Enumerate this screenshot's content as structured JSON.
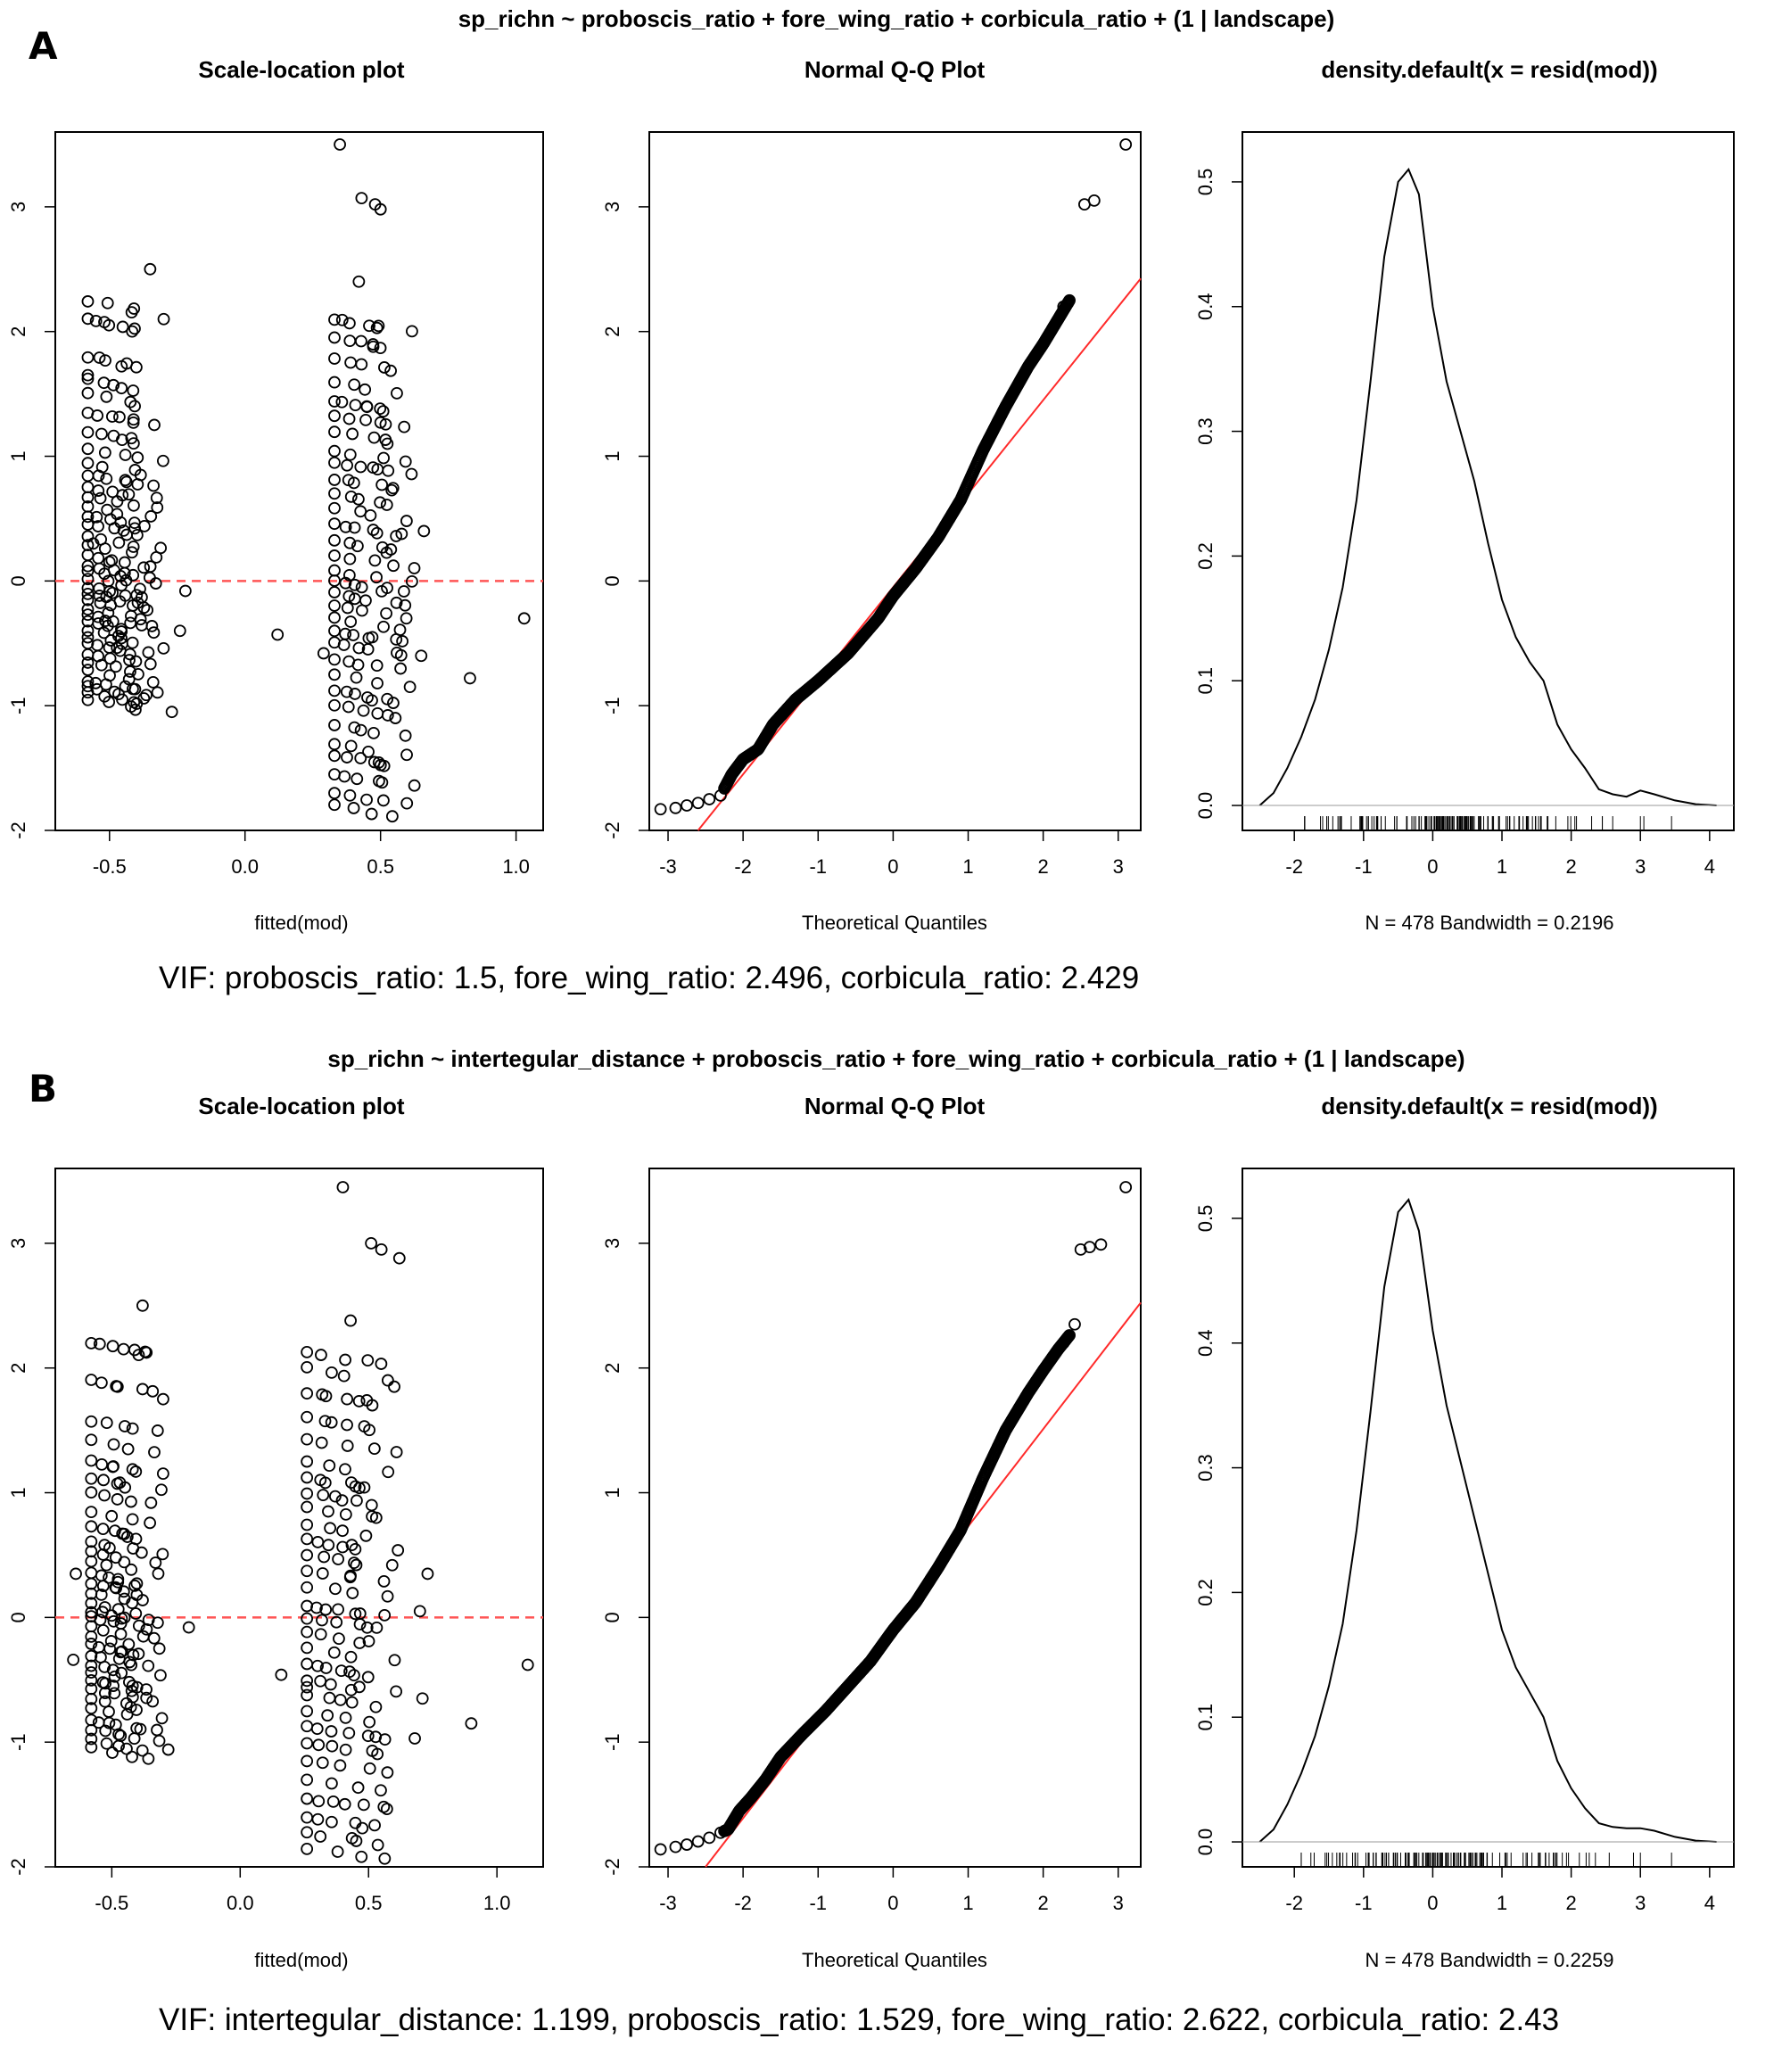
{
  "chart_data": [
    {
      "panel_letter": "A",
      "formula": "sp_richn ~ proboscis_ratio + fore_wing_ratio + corbicula_ratio + (1 | landscape)",
      "vif_text": "VIF: proboscis_ratio: 1.5, fore_wing_ratio: 2.496, corbicula_ratio: 2.429",
      "plots": [
        {
          "type": "scatter",
          "title": "Scale-location plot",
          "xlabel": "fitted(mod)",
          "ylabel": "",
          "xlim": [
            -0.7,
            1.1
          ],
          "ylim": [
            -2.0,
            3.6
          ],
          "xticks": [
            -0.5,
            0.0,
            0.5,
            1.0
          ],
          "yticks": [
            -2,
            -1,
            0,
            1,
            2,
            3
          ],
          "reference_line": {
            "y": 0,
            "style": "dashed",
            "color": "#ff5555"
          },
          "groups": [
            {
              "x_min": -0.58,
              "x_max": -0.3,
              "residuals": [
                -0.95,
                -0.9,
                -0.85,
                -0.8,
                -0.72,
                -0.65,
                -0.58,
                -0.5,
                -0.45,
                -0.4,
                -0.33,
                -0.28,
                -0.22,
                -0.15,
                -0.1,
                -0.05,
                0.02,
                0.08,
                0.12,
                0.2,
                0.28,
                0.35,
                0.45,
                0.52,
                0.6,
                0.68,
                0.75,
                0.85,
                0.95,
                1.05,
                1.2,
                1.35,
                1.5,
                1.62,
                1.8,
                2.1,
                2.25
              ],
              "extras": [
                {
                  "x": -0.58,
                  "y": 1.65
                },
                {
                  "x": -0.56,
                  "y": 0.3
                },
                {
                  "x": -0.35,
                  "y": 2.5
                },
                {
                  "x": -0.3,
                  "y": 2.1
                },
                {
                  "x": -0.27,
                  "y": -1.05
                },
                {
                  "x": -0.24,
                  "y": -0.4
                },
                {
                  "x": -0.22,
                  "y": -0.08
                }
              ]
            },
            {
              "x_min": 0.33,
              "x_max": 0.63,
              "residuals": [
                -1.8,
                -1.7,
                -1.55,
                -1.4,
                -1.3,
                -1.15,
                -1.0,
                -0.88,
                -0.75,
                -0.62,
                -0.5,
                -0.4,
                -0.3,
                -0.2,
                -0.1,
                0.0,
                0.08,
                0.2,
                0.32,
                0.45,
                0.58,
                0.7,
                0.82,
                0.95,
                1.05,
                1.2,
                1.32,
                1.45,
                1.6,
                1.78,
                1.95,
                2.1
              ],
              "extras": [
                {
                  "x": 0.12,
                  "y": -0.43
                },
                {
                  "x": 0.35,
                  "y": 3.5
                },
                {
                  "x": 0.43,
                  "y": 3.07
                },
                {
                  "x": 0.48,
                  "y": 3.02
                },
                {
                  "x": 0.5,
                  "y": 2.98
                },
                {
                  "x": 0.42,
                  "y": 2.4
                },
                {
                  "x": 0.66,
                  "y": 0.4
                },
                {
                  "x": 0.65,
                  "y": -0.6
                },
                {
                  "x": 0.83,
                  "y": -0.78
                },
                {
                  "x": 1.03,
                  "y": -0.3
                },
                {
                  "x": 0.29,
                  "y": -0.58
                }
              ]
            }
          ]
        },
        {
          "type": "qq",
          "title": "Normal Q-Q Plot",
          "xlabel": "Theoretical Quantiles",
          "ylabel": "",
          "xlim": [
            -3.25,
            3.3
          ],
          "ylim": [
            -2.0,
            3.6
          ],
          "xticks": [
            -3,
            -2,
            -1,
            0,
            1,
            2,
            3
          ],
          "yticks": [
            -2,
            -1,
            0,
            1,
            2,
            3
          ],
          "n": 478,
          "reference_line": {
            "slope": 0.75,
            "intercept": -0.05,
            "color": "#ff2a2a"
          },
          "knots": [
            [
              -3.1,
              -1.83
            ],
            [
              -2.9,
              -1.82
            ],
            [
              -2.6,
              -1.78
            ],
            [
              -2.3,
              -1.72
            ],
            [
              -2.15,
              -1.55
            ],
            [
              -2.0,
              -1.43
            ],
            [
              -1.8,
              -1.35
            ],
            [
              -1.6,
              -1.15
            ],
            [
              -1.3,
              -0.95
            ],
            [
              -1.0,
              -0.8
            ],
            [
              -0.6,
              -0.58
            ],
            [
              -0.2,
              -0.3
            ],
            [
              0.0,
              -0.12
            ],
            [
              0.3,
              0.1
            ],
            [
              0.6,
              0.35
            ],
            [
              0.9,
              0.65
            ],
            [
              1.2,
              1.05
            ],
            [
              1.5,
              1.4
            ],
            [
              1.8,
              1.72
            ],
            [
              2.0,
              1.9
            ],
            [
              2.2,
              2.1
            ],
            [
              2.4,
              2.3
            ],
            [
              2.6,
              2.55
            ],
            [
              2.75,
              3.0
            ],
            [
              3.1,
              3.5
            ]
          ],
          "extras": [
            {
              "x": 2.27,
              "y": 2.2
            },
            {
              "x": 2.33,
              "y": 2.23
            },
            {
              "x": 2.55,
              "y": 3.02
            },
            {
              "x": 2.68,
              "y": 3.05
            }
          ]
        },
        {
          "type": "line",
          "title": "density.default(x = resid(mod))",
          "xlabel": "N = 478   Bandwidth = 0.2196",
          "ylabel": "",
          "xlim": [
            -2.75,
            4.35
          ],
          "ylim": [
            -0.02,
            0.54
          ],
          "xticks": [
            -2,
            -1,
            0,
            1,
            2,
            3,
            4
          ],
          "yticks": [
            0.0,
            0.1,
            0.2,
            0.3,
            0.4,
            0.5
          ],
          "x": [
            -2.5,
            -2.3,
            -2.1,
            -1.9,
            -1.7,
            -1.5,
            -1.3,
            -1.1,
            -0.9,
            -0.7,
            -0.5,
            -0.35,
            -0.2,
            0.0,
            0.2,
            0.4,
            0.6,
            0.8,
            1.0,
            1.2,
            1.4,
            1.6,
            1.8,
            2.0,
            2.2,
            2.4,
            2.6,
            2.8,
            3.0,
            3.2,
            3.5,
            3.8,
            4.1
          ],
          "y": [
            0.0,
            0.01,
            0.03,
            0.055,
            0.085,
            0.125,
            0.175,
            0.245,
            0.34,
            0.44,
            0.5,
            0.51,
            0.49,
            0.4,
            0.34,
            0.3,
            0.26,
            0.21,
            0.165,
            0.135,
            0.115,
            0.1,
            0.065,
            0.045,
            0.03,
            0.013,
            0.009,
            0.007,
            0.012,
            0.009,
            0.004,
            0.001,
            0.0
          ],
          "rug": {
            "dense_from": -1.85,
            "dense_to": 2.45,
            "sparse": [
              2.6,
              3.0,
              3.05,
              3.45
            ]
          }
        }
      ]
    },
    {
      "panel_letter": "B",
      "formula": "sp_richn ~ intertegular_distance + proboscis_ratio + fore_wing_ratio + corbicula_ratio + (1 | landscape)",
      "vif_text": "VIF: intertegular_distance: 1.199, proboscis_ratio: 1.529, fore_wing_ratio: 2.622, corbicula_ratio: 2.43",
      "plots": [
        {
          "type": "scatter",
          "title": "Scale-location plot",
          "xlabel": "fitted(mod)",
          "ylabel": "",
          "xlim": [
            -0.72,
            1.18
          ],
          "ylim": [
            -2.0,
            3.6
          ],
          "xticks": [
            -0.5,
            0.0,
            0.5,
            1.0
          ],
          "yticks": [
            -2,
            -1,
            0,
            1,
            2,
            3
          ],
          "reference_line": {
            "y": 0,
            "style": "dashed",
            "color": "#ff5555"
          },
          "groups": [
            {
              "x_min": -0.58,
              "x_max": -0.3,
              "residuals": [
                -1.05,
                -0.98,
                -0.9,
                -0.82,
                -0.72,
                -0.65,
                -0.58,
                -0.5,
                -0.45,
                -0.38,
                -0.3,
                -0.22,
                -0.15,
                -0.08,
                0.0,
                0.05,
                0.12,
                0.2,
                0.28,
                0.35,
                0.45,
                0.52,
                0.6,
                0.72,
                0.85,
                1.0,
                1.12,
                1.25,
                1.42,
                1.58,
                1.9,
                2.2
              ],
              "extras": [
                {
                  "x": -0.65,
                  "y": -0.34
                },
                {
                  "x": -0.64,
                  "y": 0.35
                },
                {
                  "x": -0.38,
                  "y": 2.5
                },
                {
                  "x": -0.37,
                  "y": 2.13
                },
                {
                  "x": -0.3,
                  "y": 1.75
                },
                {
                  "x": -0.2,
                  "y": -0.08
                },
                {
                  "x": -0.28,
                  "y": -1.06
                }
              ]
            },
            {
              "x_min": 0.26,
              "x_max": 0.62,
              "residuals": [
                -1.85,
                -1.73,
                -1.6,
                -1.45,
                -1.3,
                -1.15,
                -1.0,
                -0.88,
                -0.75,
                -0.62,
                -0.5,
                -0.38,
                -0.25,
                -0.12,
                0.0,
                0.1,
                0.25,
                0.38,
                0.5,
                0.62,
                0.75,
                0.88,
                1.0,
                1.12,
                1.25,
                1.42,
                1.6,
                1.8,
                2.0,
                2.12
              ],
              "extras": [
                {
                  "x": 0.16,
                  "y": -0.46
                },
                {
                  "x": 0.4,
                  "y": 3.45
                },
                {
                  "x": 0.51,
                  "y": 3.0
                },
                {
                  "x": 0.55,
                  "y": 2.95
                },
                {
                  "x": 0.62,
                  "y": 2.88
                },
                {
                  "x": 0.43,
                  "y": 2.38
                },
                {
                  "x": 0.6,
                  "y": 1.85
                },
                {
                  "x": 0.73,
                  "y": 0.35
                },
                {
                  "x": 0.7,
                  "y": 0.05
                },
                {
                  "x": 0.71,
                  "y": -0.65
                },
                {
                  "x": 0.68,
                  "y": -0.97
                },
                {
                  "x": 0.9,
                  "y": -0.85
                },
                {
                  "x": 1.12,
                  "y": -0.38
                },
                {
                  "x": 0.26,
                  "y": -0.56
                }
              ]
            }
          ]
        },
        {
          "type": "qq",
          "title": "Normal Q-Q Plot",
          "xlabel": "Theoretical Quantiles",
          "ylabel": "",
          "xlim": [
            -3.25,
            3.3
          ],
          "ylim": [
            -2.0,
            3.6
          ],
          "xticks": [
            -3,
            -2,
            -1,
            0,
            1,
            2,
            3
          ],
          "yticks": [
            -2,
            -1,
            0,
            1,
            2,
            3
          ],
          "n": 478,
          "reference_line": {
            "slope": 0.78,
            "intercept": -0.05,
            "color": "#ff2a2a"
          },
          "knots": [
            [
              -3.1,
              -1.86
            ],
            [
              -2.8,
              -1.83
            ],
            [
              -2.5,
              -1.78
            ],
            [
              -2.2,
              -1.7
            ],
            [
              -2.05,
              -1.55
            ],
            [
              -1.9,
              -1.45
            ],
            [
              -1.7,
              -1.3
            ],
            [
              -1.5,
              -1.12
            ],
            [
              -1.2,
              -0.93
            ],
            [
              -0.9,
              -0.75
            ],
            [
              -0.6,
              -0.55
            ],
            [
              -0.3,
              -0.35
            ],
            [
              0.0,
              -0.1
            ],
            [
              0.3,
              0.12
            ],
            [
              0.6,
              0.4
            ],
            [
              0.9,
              0.7
            ],
            [
              1.2,
              1.12
            ],
            [
              1.5,
              1.5
            ],
            [
              1.8,
              1.8
            ],
            [
              2.0,
              1.98
            ],
            [
              2.2,
              2.15
            ],
            [
              2.4,
              2.3
            ],
            [
              2.55,
              2.5
            ],
            [
              2.7,
              2.9
            ],
            [
              3.1,
              3.45
            ]
          ],
          "extras": [
            {
              "x": 2.27,
              "y": 2.2
            },
            {
              "x": 2.42,
              "y": 2.35
            },
            {
              "x": 2.5,
              "y": 2.95
            },
            {
              "x": 2.62,
              "y": 2.97
            },
            {
              "x": 2.77,
              "y": 2.99
            }
          ]
        },
        {
          "type": "line",
          "title": "density.default(x = resid(mod))",
          "xlabel": "N = 478   Bandwidth = 0.2259",
          "ylabel": "",
          "xlim": [
            -2.75,
            4.35
          ],
          "ylim": [
            -0.02,
            0.54
          ],
          "xticks": [
            -2,
            -1,
            0,
            1,
            2,
            3,
            4
          ],
          "yticks": [
            0.0,
            0.1,
            0.2,
            0.3,
            0.4,
            0.5
          ],
          "x": [
            -2.5,
            -2.3,
            -2.1,
            -1.9,
            -1.7,
            -1.5,
            -1.3,
            -1.1,
            -0.9,
            -0.7,
            -0.5,
            -0.35,
            -0.2,
            0.0,
            0.2,
            0.4,
            0.6,
            0.8,
            1.0,
            1.2,
            1.4,
            1.6,
            1.8,
            2.0,
            2.2,
            2.4,
            2.6,
            2.8,
            3.0,
            3.2,
            3.5,
            3.8,
            4.1
          ],
          "y": [
            0.0,
            0.01,
            0.03,
            0.055,
            0.085,
            0.125,
            0.175,
            0.25,
            0.345,
            0.445,
            0.505,
            0.515,
            0.49,
            0.41,
            0.35,
            0.305,
            0.26,
            0.215,
            0.17,
            0.14,
            0.12,
            0.1,
            0.065,
            0.043,
            0.027,
            0.015,
            0.012,
            0.011,
            0.011,
            0.009,
            0.004,
            0.001,
            0.0
          ],
          "rug": {
            "dense_from": -1.9,
            "dense_to": 2.35,
            "sparse": [
              2.55,
              2.9,
              3.0,
              3.45
            ]
          }
        }
      ]
    }
  ]
}
